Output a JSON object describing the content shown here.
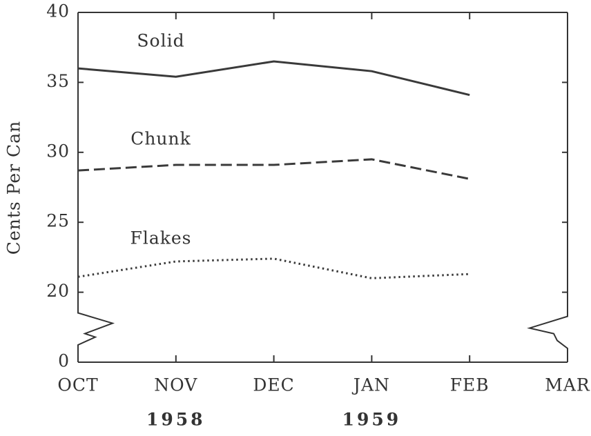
{
  "chart_data": {
    "type": "line",
    "y_label": "Cents Per Can",
    "categories": [
      "OCT",
      "NOV",
      "DEC",
      "JAN",
      "FEB",
      "MAR"
    ],
    "year_labels": [
      "1958",
      "1959"
    ],
    "series": [
      {
        "name": "Solid",
        "color": "#3a3a3a",
        "style": "solid",
        "values": [
          36.0,
          35.4,
          36.5,
          35.8,
          34.1,
          null
        ]
      },
      {
        "name": "Chunk",
        "color": "#3a3a3a",
        "style": "dashed",
        "values": [
          28.7,
          29.1,
          29.1,
          29.5,
          28.1,
          null
        ]
      },
      {
        "name": "Flakes",
        "color": "#3a3a3a",
        "style": "dotted",
        "values": [
          21.1,
          22.2,
          22.4,
          21.0,
          21.3,
          null
        ]
      }
    ],
    "ylim": [
      0,
      40
    ],
    "yticks": [
      0,
      20,
      25,
      30,
      35,
      40
    ],
    "y_axis_break": true,
    "grid": false
  }
}
